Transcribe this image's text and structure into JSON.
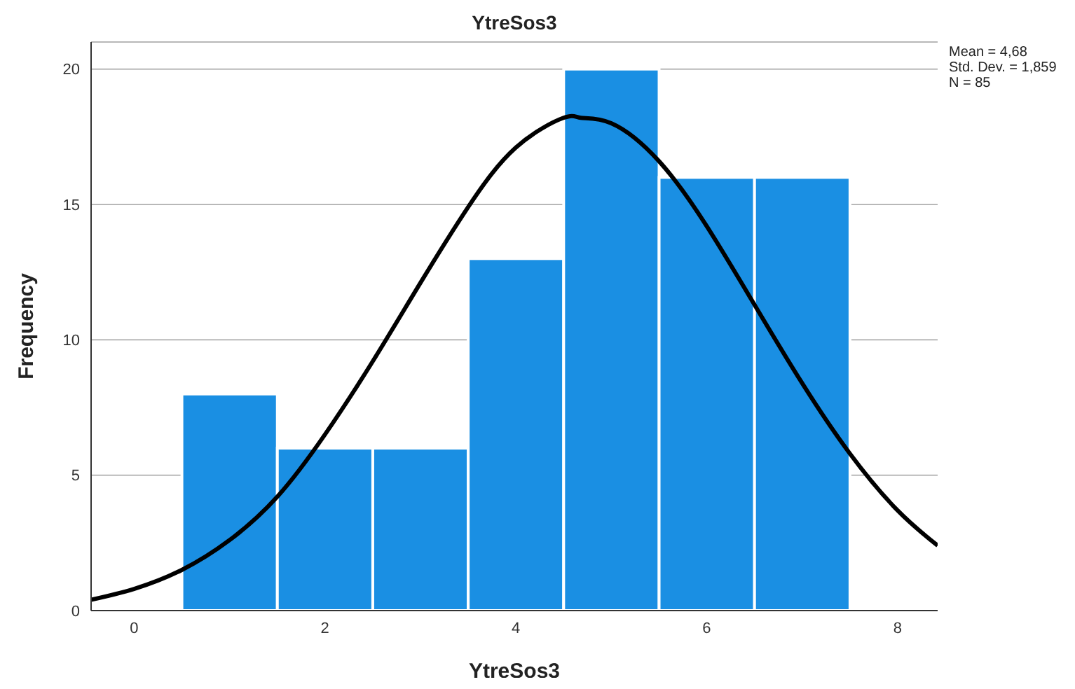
{
  "chart_data": {
    "type": "histogram",
    "title": "YtreSos3",
    "xlabel": "YtreSos3",
    "ylabel": "Frequency",
    "series": [
      {
        "type": "histogram",
        "color": "#1a8fe3",
        "bins": [
          0.5,
          1.5,
          2.5,
          3.5,
          4.5,
          5.5,
          6.5,
          7.5
        ],
        "values": [
          8,
          6,
          6,
          13,
          20,
          16,
          16
        ]
      },
      {
        "type": "line",
        "color": "#000000",
        "x": [
          -0.45,
          0,
          0.5,
          1,
          1.5,
          2,
          2.5,
          3,
          3.5,
          4,
          4.5,
          4.68,
          5,
          5.5,
          6,
          6.5,
          7,
          7.5,
          8,
          8.42
        ],
        "values": [
          0.4,
          0.8,
          1.5,
          2.6,
          4.2,
          6.5,
          9.2,
          12.1,
          14.9,
          17.1,
          18.2,
          18.2,
          18.0,
          16.6,
          14.2,
          11.3,
          8.4,
          5.8,
          3.7,
          2.4
        ]
      }
    ],
    "xlim": [
      -0.45,
      8.42
    ],
    "xticks": [
      0,
      2,
      4,
      6,
      8
    ],
    "ylim": [
      0,
      21
    ],
    "yticks": [
      0,
      5,
      10,
      15,
      20
    ],
    "grid": "y",
    "legend": false,
    "annotations": [
      "Mean = 4,68",
      "Std. Dev. = 1,859",
      "N = 85"
    ]
  }
}
